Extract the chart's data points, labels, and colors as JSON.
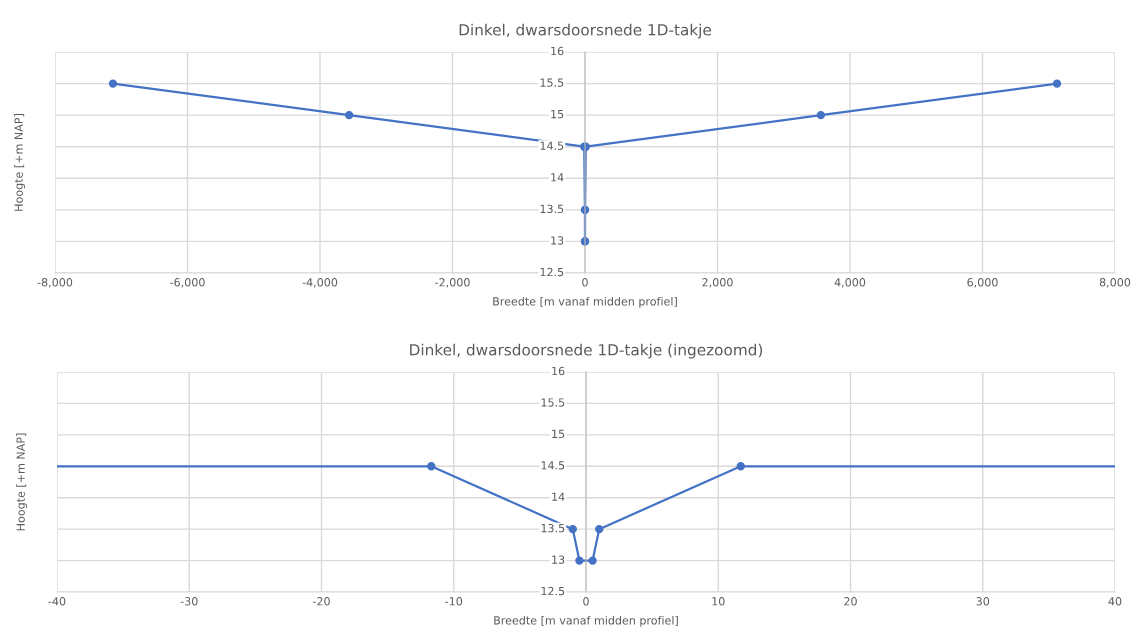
{
  "chart_data": [
    {
      "type": "line",
      "title": "Dinkel, dwarsdoorsnede 1D-takje",
      "xlabel": "Breedte [m vanaf midden profiel]",
      "ylabel": "Hoogte [+m NAP]",
      "x": [
        -7125,
        -3560,
        -11.7,
        -1,
        -0.5,
        0.5,
        1,
        11.7,
        3560,
        7125
      ],
      "series": [
        {
          "color": "#4472c4",
          "values": [
            15.5,
            15,
            14.5,
            13.5,
            13,
            13,
            13.5,
            14.5,
            15,
            15.5
          ]
        }
      ],
      "xlim": [
        -8000,
        8000
      ],
      "xticks": [
        {
          "value": -8000,
          "label": "-8,000"
        },
        {
          "value": -6000,
          "label": "-6,000"
        },
        {
          "value": -4000,
          "label": "-4,000"
        },
        {
          "value": -2000,
          "label": "-2,000"
        },
        0,
        {
          "value": 2000,
          "label": "2,000"
        },
        {
          "value": 4000,
          "label": "4,000"
        },
        {
          "value": 6000,
          "label": "6,000"
        },
        {
          "value": 8000,
          "label": "8,000"
        }
      ],
      "ylim": [
        12.5,
        16
      ],
      "yticks": [
        12.5,
        13,
        13.5,
        14,
        14.5,
        15,
        15.5,
        16
      ],
      "grid": true,
      "marker": "circle",
      "line_style": "solid"
    },
    {
      "type": "line",
      "title": "Dinkel, dwarsdoorsnede 1D-takje (ingezoomd)",
      "xlabel": "Breedte [m vanaf midden profiel]",
      "ylabel": "Hoogte [+m NAP]",
      "x": [
        -40,
        -11.7,
        -1,
        -0.5,
        0.5,
        1,
        11.7,
        40
      ],
      "series": [
        {
          "color": "#4472c4",
          "values": [
            14.5,
            14.5,
            13.5,
            13,
            13,
            13.5,
            14.5,
            14.5
          ]
        }
      ],
      "xlim": [
        -40,
        40
      ],
      "xticks": [
        -40,
        -30,
        -20,
        -10,
        0,
        10,
        20,
        30,
        40
      ],
      "ylim": [
        12.5,
        16
      ],
      "yticks": [
        12.5,
        13,
        13.5,
        14,
        14.5,
        15,
        15.5,
        16
      ],
      "grid": true,
      "marker": "circle",
      "line_style": "solid"
    }
  ]
}
